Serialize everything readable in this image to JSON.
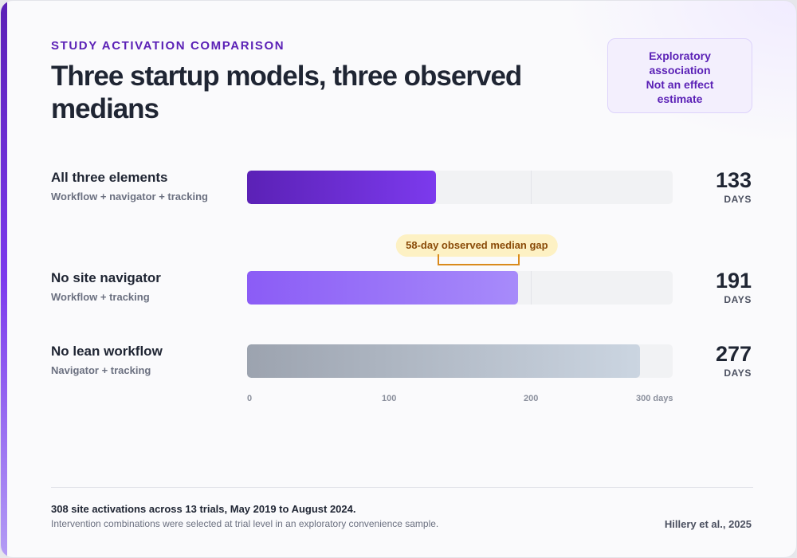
{
  "eyebrow": "STUDY ACTIVATION COMPARISON",
  "title": "Three startup models, three observed medians",
  "badge": {
    "line1": "Exploratory",
    "line2": "association",
    "line3": "Not an effect",
    "line4": "estimate"
  },
  "chart_data": {
    "type": "bar",
    "orientation": "horizontal",
    "categories": [
      "All three elements",
      "No site navigator",
      "No lean workflow"
    ],
    "subtitles": [
      "Workflow + navigator + tracking",
      "Workflow + tracking",
      "Navigator + tracking"
    ],
    "values": [
      133,
      191,
      277
    ],
    "value_labels": [
      "133",
      "191",
      "277"
    ],
    "unit_label": "DAYS",
    "xlim": [
      0,
      300
    ],
    "ticks": [
      {
        "value": 0,
        "label": "0"
      },
      {
        "value": 100,
        "label": "100"
      },
      {
        "value": 200,
        "label": "200"
      },
      {
        "value": 300,
        "label": "300 days"
      }
    ],
    "gridlines": [
      200
    ],
    "annotation": {
      "text": "58-day observed median gap",
      "from": 133,
      "to": 191
    },
    "colors": [
      "#6d28d9",
      "#9a72f8",
      "#b4bcc8"
    ]
  },
  "footer": {
    "main": "308 site activations across 13 trials, May 2019 to August 2024.",
    "sub": "Intervention combinations were selected at trial level in an exploratory convenience sample.",
    "citation": "Hillery et al., 2025"
  }
}
